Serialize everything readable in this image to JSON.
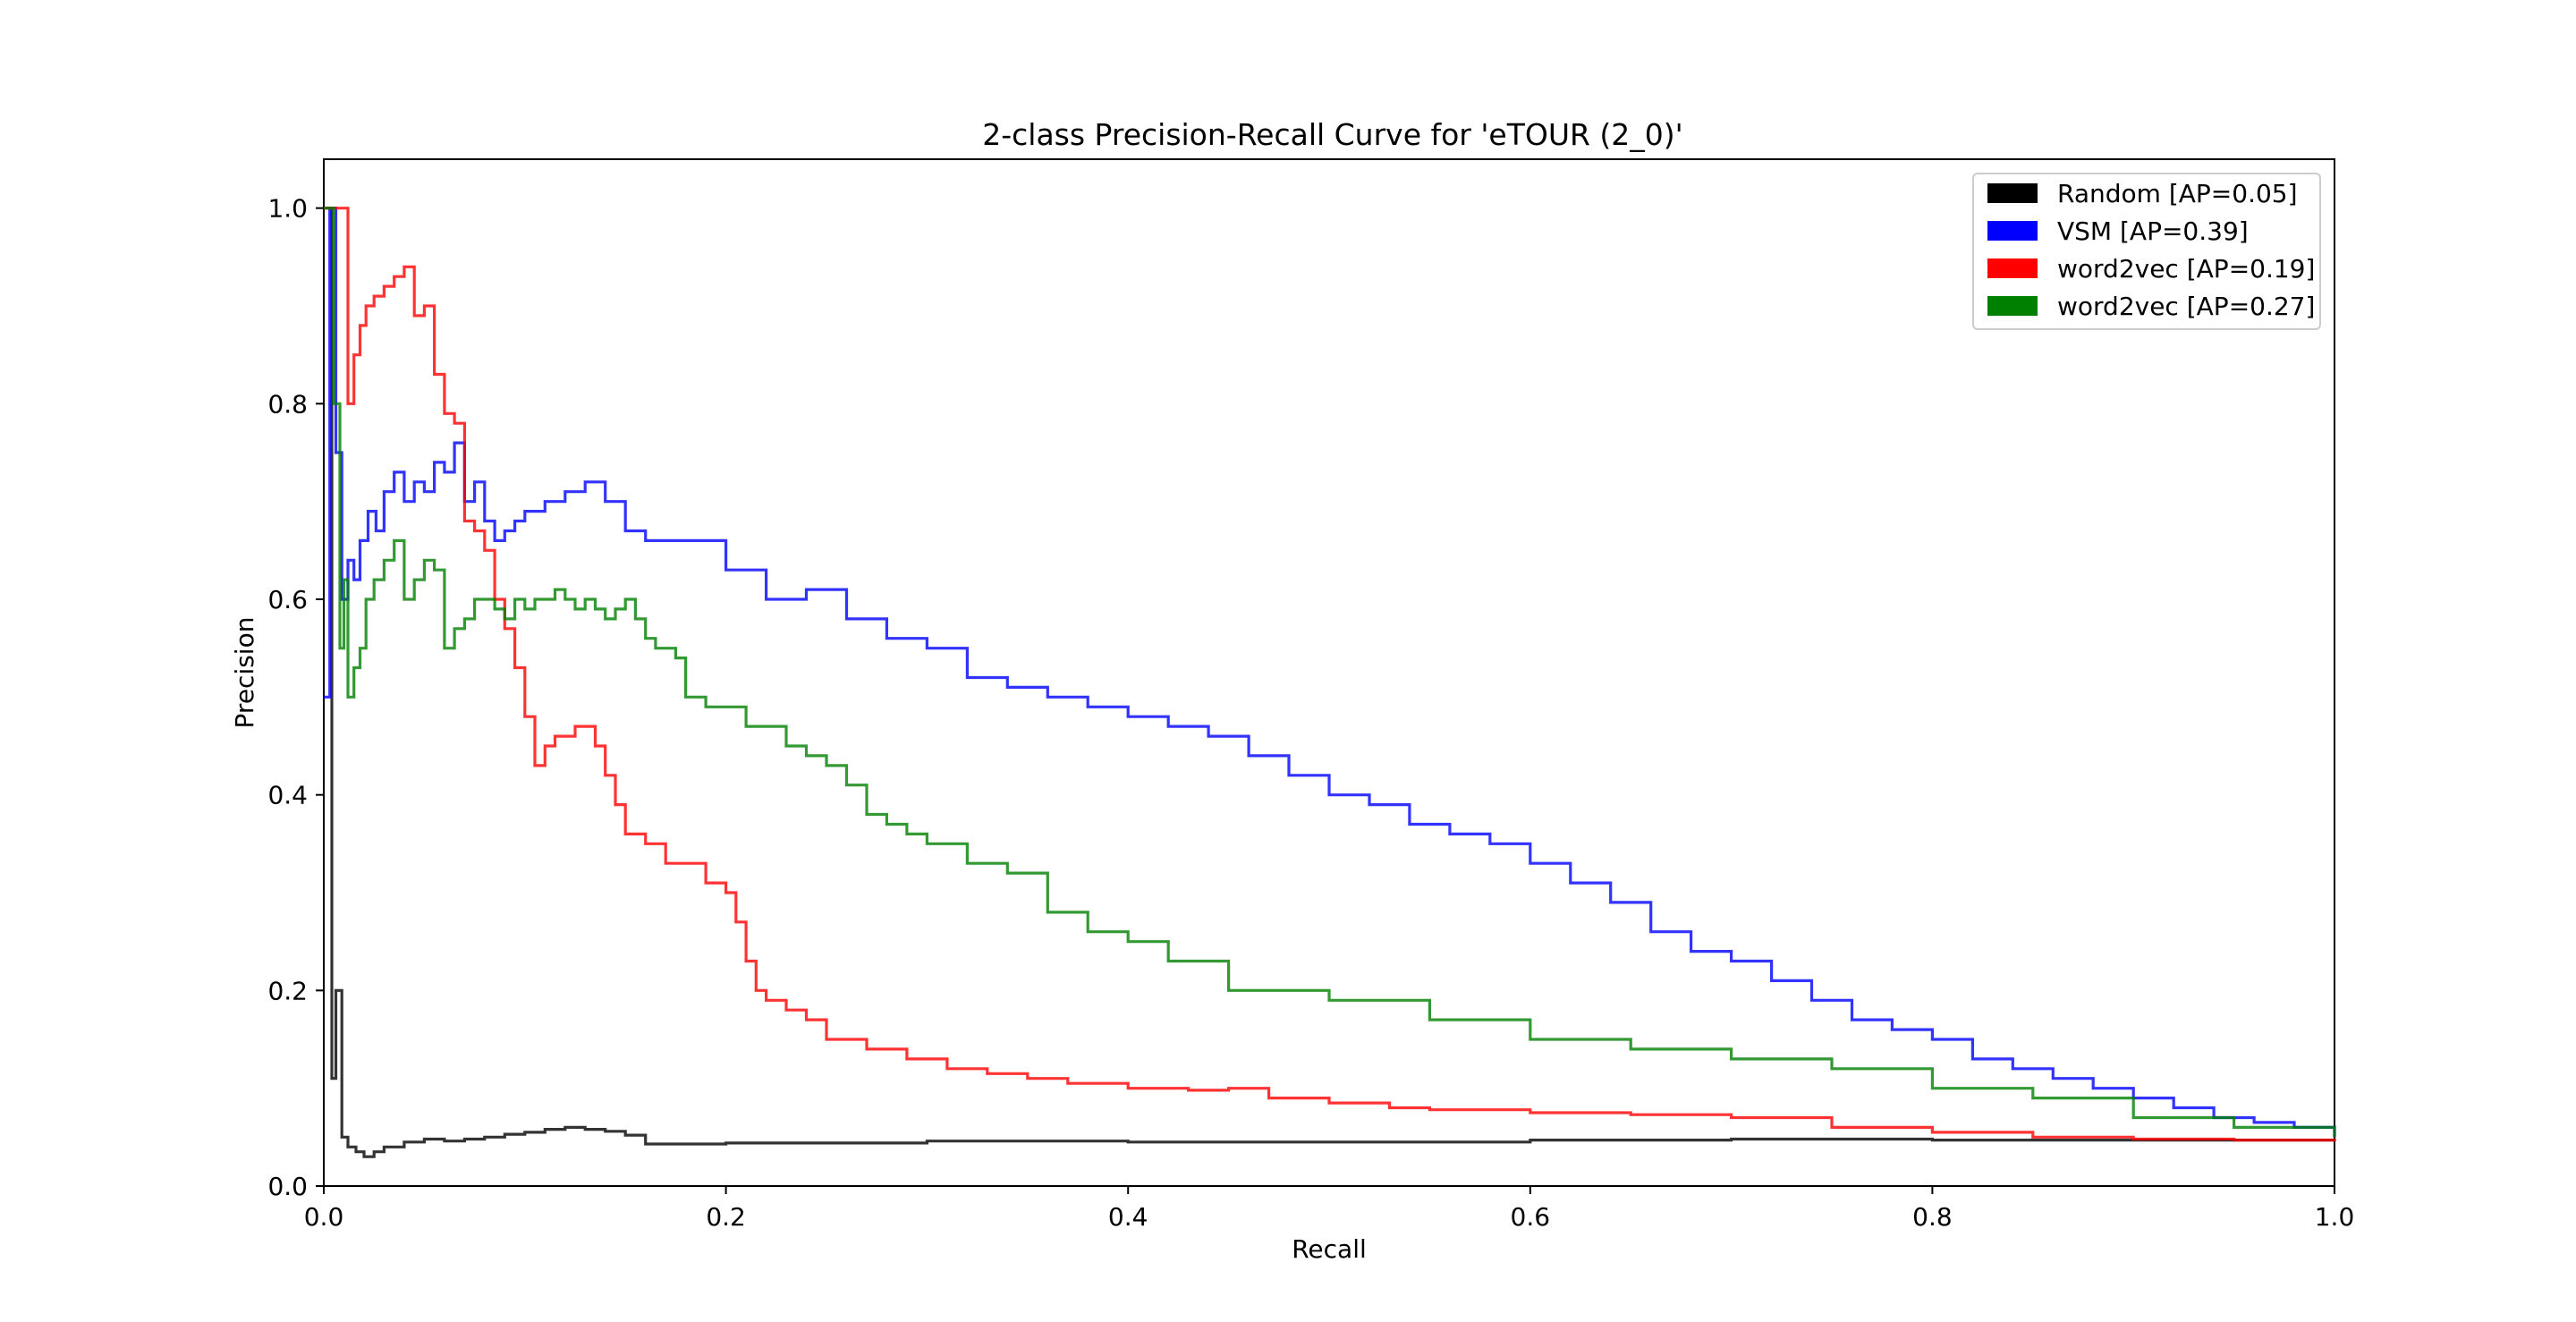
{
  "chart_data": {
    "type": "line",
    "title": "2-class Precision-Recall Curve for 'eTOUR (2_0)'",
    "xlabel": "Recall",
    "ylabel": "Precision",
    "xlim": [
      0.0,
      1.0
    ],
    "ylim": [
      0.0,
      1.05
    ],
    "xticks": [
      0.0,
      0.2,
      0.4,
      0.6,
      0.8,
      1.0
    ],
    "yticks": [
      0.0,
      0.2,
      0.4,
      0.6,
      0.8,
      1.0
    ],
    "xtick_labels": [
      "0.0",
      "0.2",
      "0.4",
      "0.6",
      "0.8",
      "1.0"
    ],
    "ytick_labels": [
      "0.0",
      "0.2",
      "0.4",
      "0.6",
      "0.8",
      "1.0"
    ],
    "grid": false,
    "legend_position": "top-right",
    "step_style": "post",
    "series": [
      {
        "name": "Random [AP=0.05]",
        "color": "#000000",
        "x": [
          0.0,
          0.004,
          0.006,
          0.009,
          0.012,
          0.016,
          0.02,
          0.025,
          0.03,
          0.04,
          0.05,
          0.06,
          0.07,
          0.08,
          0.09,
          0.1,
          0.11,
          0.12,
          0.13,
          0.14,
          0.15,
          0.16,
          0.2,
          0.3,
          0.4,
          0.5,
          0.6,
          0.7,
          0.8,
          0.9,
          1.0
        ],
        "y": [
          1.0,
          0.11,
          0.2,
          0.05,
          0.04,
          0.035,
          0.03,
          0.035,
          0.04,
          0.045,
          0.048,
          0.046,
          0.048,
          0.05,
          0.053,
          0.055,
          0.058,
          0.06,
          0.058,
          0.056,
          0.052,
          0.043,
          0.044,
          0.046,
          0.045,
          0.045,
          0.047,
          0.048,
          0.047,
          0.047,
          0.046
        ]
      },
      {
        "name": "VSM [AP=0.39]",
        "color": "#0000ff",
        "x": [
          0.0,
          0.003,
          0.006,
          0.009,
          0.012,
          0.015,
          0.018,
          0.022,
          0.026,
          0.03,
          0.035,
          0.04,
          0.045,
          0.05,
          0.055,
          0.06,
          0.065,
          0.07,
          0.075,
          0.08,
          0.085,
          0.09,
          0.095,
          0.1,
          0.11,
          0.12,
          0.13,
          0.14,
          0.15,
          0.16,
          0.18,
          0.2,
          0.22,
          0.24,
          0.26,
          0.28,
          0.3,
          0.32,
          0.34,
          0.36,
          0.38,
          0.4,
          0.42,
          0.44,
          0.46,
          0.48,
          0.5,
          0.52,
          0.54,
          0.56,
          0.58,
          0.6,
          0.62,
          0.64,
          0.66,
          0.68,
          0.7,
          0.72,
          0.74,
          0.76,
          0.78,
          0.8,
          0.82,
          0.84,
          0.86,
          0.88,
          0.9,
          0.92,
          0.94,
          0.96,
          0.98,
          1.0
        ],
        "y": [
          0.5,
          1.0,
          0.75,
          0.6,
          0.64,
          0.62,
          0.66,
          0.69,
          0.67,
          0.71,
          0.73,
          0.7,
          0.72,
          0.71,
          0.74,
          0.73,
          0.76,
          0.7,
          0.72,
          0.68,
          0.66,
          0.67,
          0.68,
          0.69,
          0.7,
          0.71,
          0.72,
          0.7,
          0.67,
          0.66,
          0.66,
          0.63,
          0.6,
          0.61,
          0.58,
          0.56,
          0.55,
          0.52,
          0.51,
          0.5,
          0.49,
          0.48,
          0.47,
          0.46,
          0.44,
          0.42,
          0.4,
          0.39,
          0.37,
          0.36,
          0.35,
          0.33,
          0.31,
          0.29,
          0.26,
          0.24,
          0.23,
          0.21,
          0.19,
          0.17,
          0.16,
          0.15,
          0.13,
          0.12,
          0.11,
          0.1,
          0.09,
          0.08,
          0.07,
          0.065,
          0.06,
          0.05
        ]
      },
      {
        "name": "word2vec [AP=0.19]",
        "color": "#ff0000",
        "x": [
          0.0,
          0.012,
          0.015,
          0.018,
          0.021,
          0.025,
          0.03,
          0.035,
          0.04,
          0.045,
          0.05,
          0.055,
          0.06,
          0.065,
          0.07,
          0.075,
          0.08,
          0.085,
          0.09,
          0.095,
          0.1,
          0.105,
          0.11,
          0.115,
          0.12,
          0.125,
          0.13,
          0.135,
          0.14,
          0.145,
          0.15,
          0.155,
          0.16,
          0.165,
          0.17,
          0.18,
          0.19,
          0.2,
          0.205,
          0.21,
          0.215,
          0.22,
          0.23,
          0.24,
          0.25,
          0.27,
          0.29,
          0.31,
          0.33,
          0.35,
          0.37,
          0.4,
          0.43,
          0.45,
          0.47,
          0.5,
          0.53,
          0.55,
          0.6,
          0.65,
          0.7,
          0.75,
          0.8,
          0.85,
          0.9,
          0.95,
          1.0
        ],
        "y": [
          1.0,
          0.8,
          0.85,
          0.88,
          0.9,
          0.91,
          0.92,
          0.93,
          0.94,
          0.89,
          0.9,
          0.83,
          0.79,
          0.78,
          0.68,
          0.67,
          0.65,
          0.6,
          0.57,
          0.53,
          0.48,
          0.43,
          0.45,
          0.46,
          0.46,
          0.47,
          0.47,
          0.45,
          0.42,
          0.39,
          0.36,
          0.36,
          0.35,
          0.35,
          0.33,
          0.33,
          0.31,
          0.3,
          0.27,
          0.23,
          0.2,
          0.19,
          0.18,
          0.17,
          0.15,
          0.14,
          0.13,
          0.12,
          0.115,
          0.11,
          0.105,
          0.1,
          0.098,
          0.1,
          0.09,
          0.085,
          0.08,
          0.078,
          0.075,
          0.073,
          0.07,
          0.06,
          0.055,
          0.05,
          0.048,
          0.047,
          0.046
        ]
      },
      {
        "name": "word2vec [AP=0.27]",
        "color": "#008000",
        "x": [
          0.0,
          0.005,
          0.008,
          0.01,
          0.012,
          0.015,
          0.018,
          0.021,
          0.025,
          0.03,
          0.035,
          0.04,
          0.045,
          0.05,
          0.055,
          0.06,
          0.065,
          0.07,
          0.075,
          0.08,
          0.085,
          0.09,
          0.095,
          0.1,
          0.105,
          0.11,
          0.115,
          0.12,
          0.125,
          0.13,
          0.135,
          0.14,
          0.145,
          0.15,
          0.155,
          0.16,
          0.165,
          0.17,
          0.175,
          0.18,
          0.19,
          0.2,
          0.21,
          0.22,
          0.23,
          0.24,
          0.25,
          0.26,
          0.27,
          0.28,
          0.29,
          0.3,
          0.32,
          0.34,
          0.36,
          0.38,
          0.4,
          0.42,
          0.45,
          0.5,
          0.55,
          0.6,
          0.65,
          0.7,
          0.75,
          0.8,
          0.85,
          0.9,
          0.95,
          1.0
        ],
        "y": [
          1.0,
          0.8,
          0.55,
          0.62,
          0.5,
          0.53,
          0.55,
          0.6,
          0.62,
          0.64,
          0.66,
          0.6,
          0.62,
          0.64,
          0.63,
          0.55,
          0.57,
          0.58,
          0.6,
          0.6,
          0.59,
          0.58,
          0.6,
          0.59,
          0.6,
          0.6,
          0.61,
          0.6,
          0.59,
          0.6,
          0.59,
          0.58,
          0.59,
          0.6,
          0.58,
          0.56,
          0.55,
          0.55,
          0.54,
          0.5,
          0.49,
          0.49,
          0.47,
          0.47,
          0.45,
          0.44,
          0.43,
          0.41,
          0.38,
          0.37,
          0.36,
          0.35,
          0.33,
          0.32,
          0.28,
          0.26,
          0.25,
          0.23,
          0.2,
          0.19,
          0.17,
          0.15,
          0.14,
          0.13,
          0.12,
          0.1,
          0.09,
          0.07,
          0.06,
          0.05
        ]
      }
    ]
  }
}
